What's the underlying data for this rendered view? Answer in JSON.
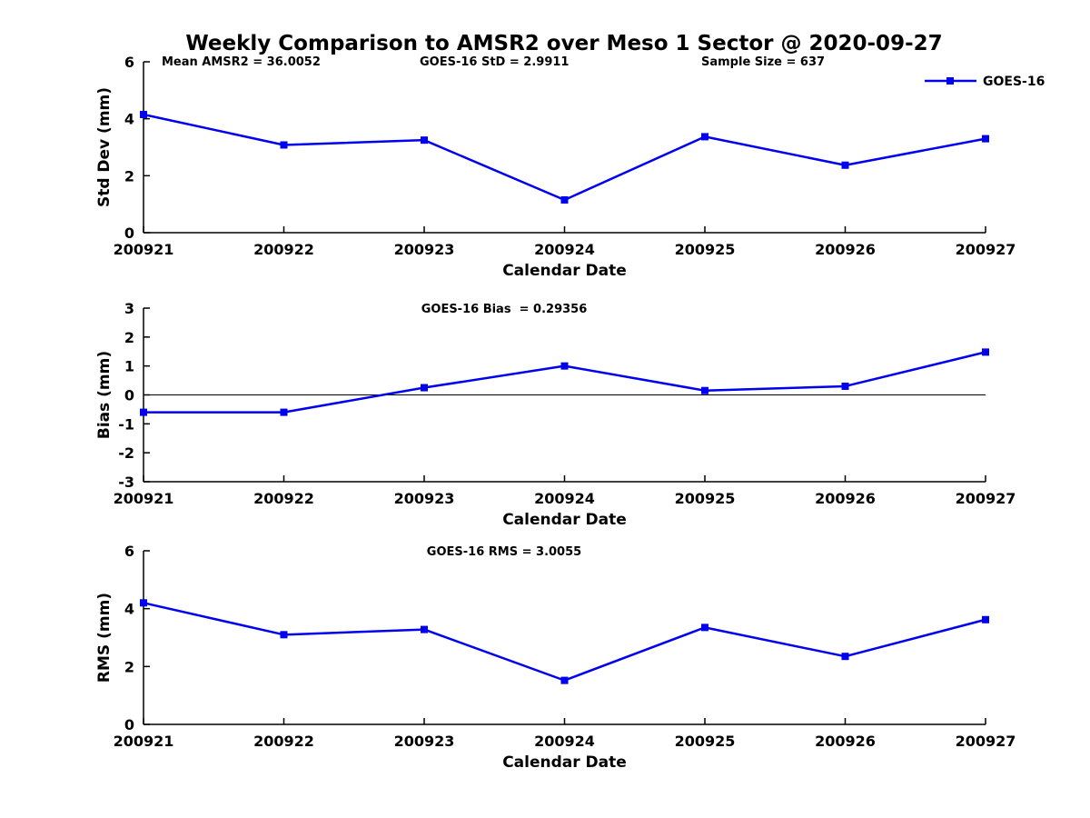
{
  "title": "Weekly Comparison to AMSR2 over Meso 1 Sector @ 2020-09-27",
  "legend": {
    "label": "GOES-16",
    "position": "top-right"
  },
  "colors": {
    "series": "#0000EE",
    "axis": "#000000",
    "text": "#000000",
    "background": "#FFFFFF"
  },
  "chart_data": [
    {
      "type": "line",
      "panel": "std-dev",
      "categories": [
        "200921",
        "200922",
        "200923",
        "200924",
        "200925",
        "200926",
        "200927"
      ],
      "series": [
        {
          "name": "GOES-16",
          "values": [
            4.15,
            3.08,
            3.25,
            1.15,
            3.37,
            2.37,
            3.3
          ]
        }
      ],
      "xlabel": "Calendar Date",
      "ylabel": "Std Dev (mm)",
      "ylim": [
        0,
        6
      ],
      "yticks": [
        0,
        2,
        4,
        6
      ],
      "grid": false,
      "zero_line": false,
      "annotations": [
        "Mean AMSR2 = 36.0052",
        "GOES-16 StD = 2.9911",
        "Sample Size = 637"
      ]
    },
    {
      "type": "line",
      "panel": "bias",
      "title": "GOES-16 Bias  = 0.29356",
      "categories": [
        "200921",
        "200922",
        "200923",
        "200924",
        "200925",
        "200926",
        "200927"
      ],
      "series": [
        {
          "name": "GOES-16",
          "values": [
            -0.6,
            -0.6,
            0.25,
            1.0,
            0.15,
            0.3,
            1.48
          ]
        }
      ],
      "xlabel": "Calendar Date",
      "ylabel": "Bias (mm)",
      "ylim": [
        -3,
        3
      ],
      "yticks": [
        -3,
        -2,
        -1,
        0,
        1,
        2,
        3
      ],
      "grid": false,
      "zero_line": true,
      "annotations": []
    },
    {
      "type": "line",
      "panel": "rms",
      "title": "GOES-16 RMS = 3.0055",
      "categories": [
        "200921",
        "200922",
        "200923",
        "200924",
        "200925",
        "200926",
        "200927"
      ],
      "series": [
        {
          "name": "GOES-16",
          "values": [
            4.2,
            3.1,
            3.28,
            1.52,
            3.35,
            2.35,
            3.62
          ]
        }
      ],
      "xlabel": "Calendar Date",
      "ylabel": "RMS (mm)",
      "ylim": [
        0,
        6
      ],
      "yticks": [
        0,
        2,
        4,
        6
      ],
      "grid": false,
      "zero_line": false,
      "annotations": []
    }
  ]
}
